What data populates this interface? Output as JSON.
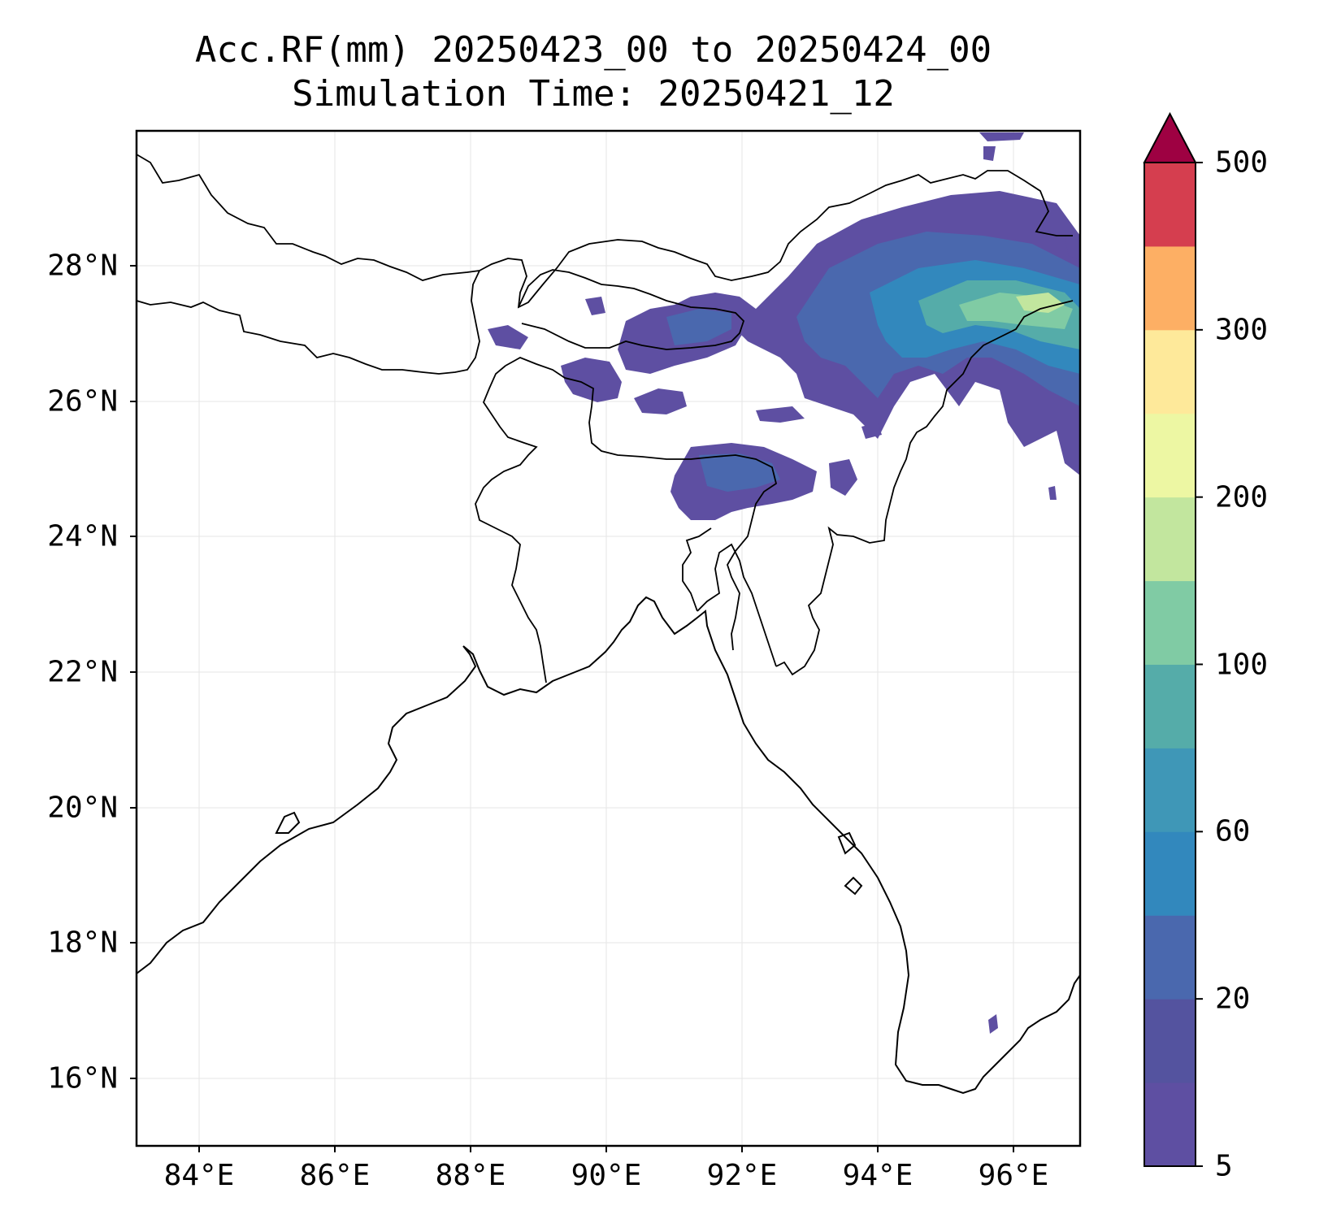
{
  "title": {
    "line1": "Acc.RF(mm) 20250423_00 to 20250424_00",
    "line2": "Simulation Time: 20250421_12"
  },
  "map": {
    "lon_range": [
      83.1,
      97.0
    ],
    "lat_range": [
      15.0,
      30.0
    ],
    "x_ticks": [
      "84°E",
      "86°E",
      "88°E",
      "90°E",
      "92°E",
      "94°E",
      "96°E"
    ],
    "y_ticks": [
      "16°N",
      "18°N",
      "20°N",
      "22°N",
      "24°N",
      "26°N",
      "28°N"
    ],
    "gridlines": true
  },
  "colorbar": {
    "extend": "max",
    "levels": [
      5,
      10,
      20,
      40,
      60,
      80,
      100,
      150,
      200,
      250,
      300,
      400,
      500
    ],
    "tick_labels": [
      "5",
      "20",
      "60",
      "100",
      "200",
      "300",
      "500"
    ],
    "colors": [
      "#5e4fa2",
      "#54539f",
      "#4a68ae",
      "#3288bd",
      "#3f97b7",
      "#55aca9",
      "#80cba4",
      "#c2e69e",
      "#edf7a3",
      "#fee99a",
      "#fdaf64",
      "#d53e4f"
    ],
    "extend_color": "#9e0142"
  }
}
